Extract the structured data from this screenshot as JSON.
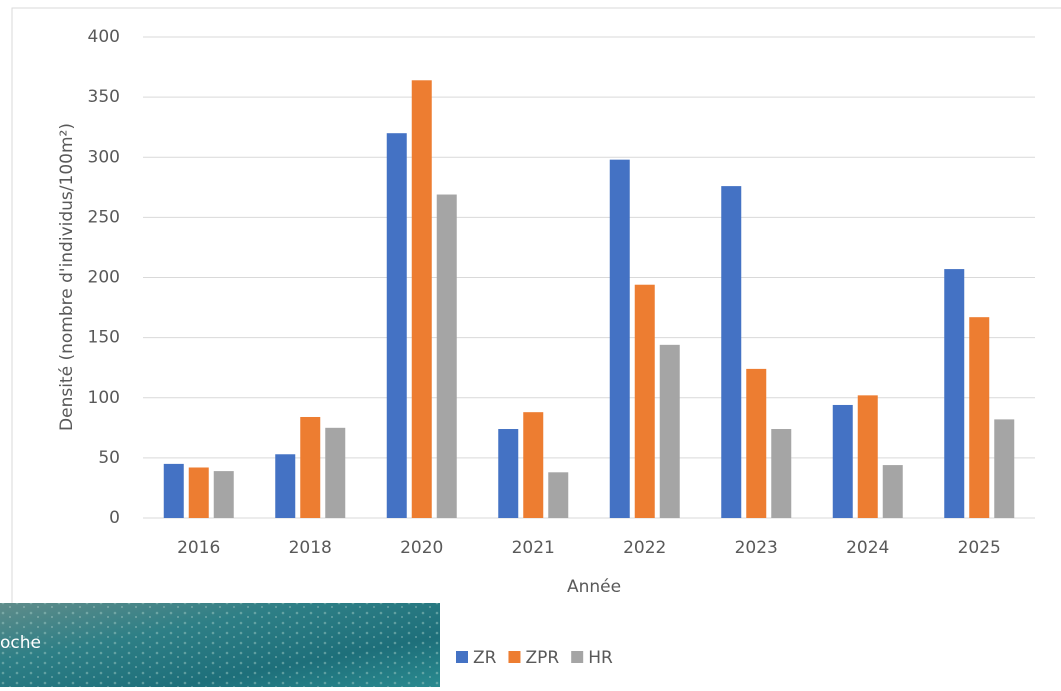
{
  "chart_data": {
    "type": "bar",
    "x_label": "Année",
    "y_label": "Densité (nombre d'individus/100m²)",
    "categories": [
      "2016",
      "2018",
      "2020",
      "2021",
      "2022",
      "2023",
      "2024",
      "2025"
    ],
    "series": [
      {
        "name": "ZR",
        "color": "#4472c4",
        "values": [
          45,
          53,
          320,
          74,
          298,
          276,
          94,
          207
        ]
      },
      {
        "name": "ZPR",
        "color": "#ed7d31",
        "values": [
          42,
          84,
          364,
          88,
          194,
          124,
          102,
          167
        ]
      },
      {
        "name": "HR",
        "color": "#a5a5a5",
        "values": [
          39,
          75,
          269,
          38,
          144,
          74,
          44,
          82
        ]
      }
    ],
    "ylim": [
      0,
      400
    ],
    "yticks": [
      0,
      50,
      100,
      150,
      200,
      250,
      300,
      350,
      400
    ],
    "grid": true,
    "legend": "bottom"
  },
  "photo_caption": "oche"
}
